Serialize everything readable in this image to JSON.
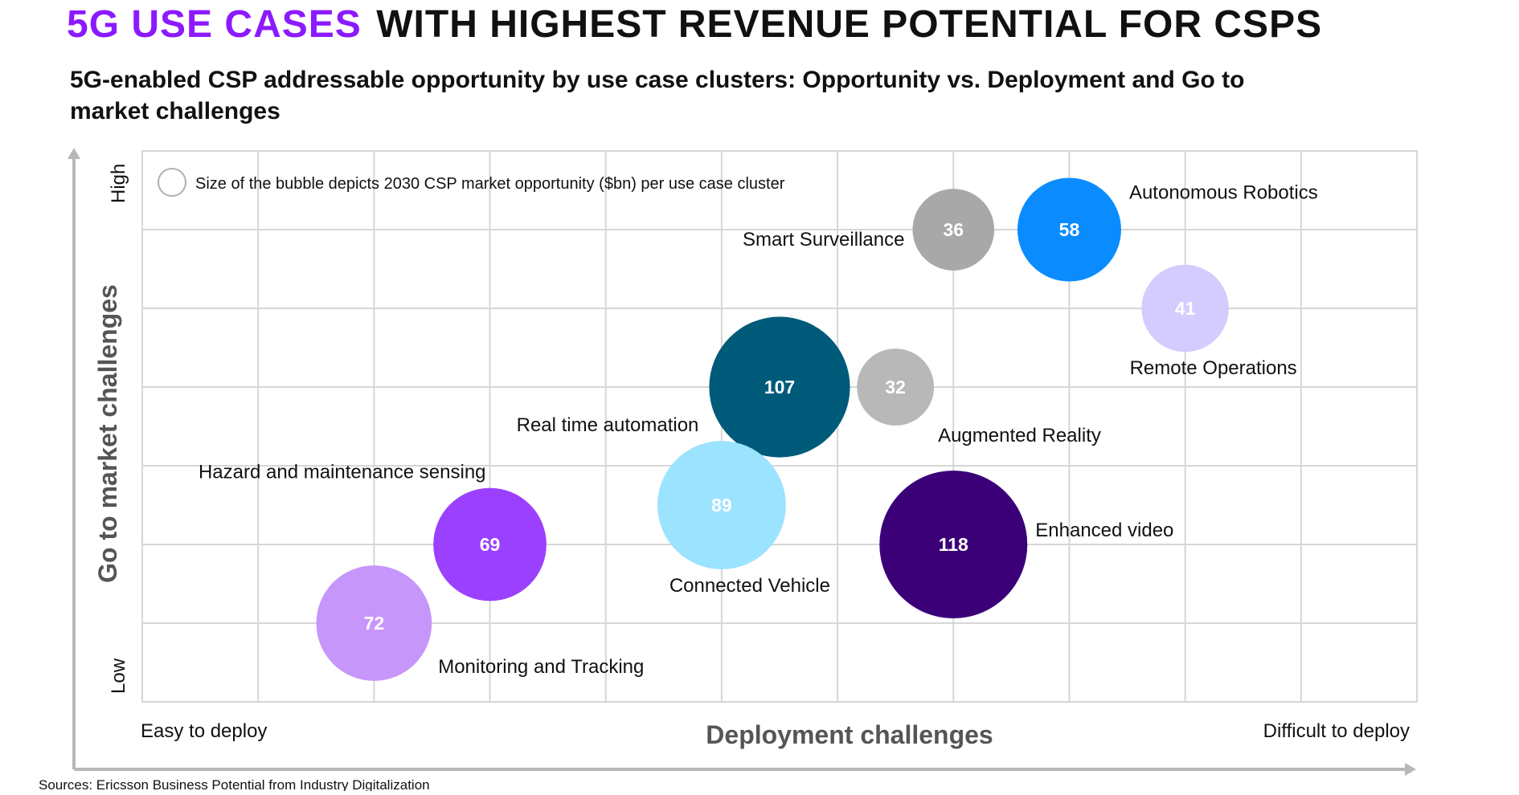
{
  "header": {
    "title_accent": "5G USE CASES",
    "title_rest": "WITH HIGHEST REVENUE POTENTIAL FOR CSPS",
    "subtitle_line1": "5G-enabled CSP addressable opportunity by use case clusters: Opportunity vs. Deployment and Go to",
    "subtitle_line2": "market challenges"
  },
  "colors": {
    "accent": "#8c1aff",
    "grid": "#d6d6d6",
    "axis_arrow": "#b8b8b8"
  },
  "chart_data": {
    "type": "scatter",
    "subtype": "bubble",
    "title": "",
    "xlabel": "Deployment challenges",
    "ylabel": "Go to market challenges",
    "x_low_label": "Easy to deploy",
    "x_high_label": "Difficult to deploy",
    "y_low_label": "Low",
    "y_high_label": "High",
    "xlim": [
      0,
      11
    ],
    "ylim": [
      0,
      7
    ],
    "grid": true,
    "note": "Size of the bubble depicts 2030 CSP market opportunity ($bn) per use case cluster",
    "series": [
      {
        "name": "Autonomous Robotics",
        "x": 8,
        "y": 6,
        "value": 58,
        "color": "#0a8cff",
        "label_position": "top-right"
      },
      {
        "name": "Smart Surveillance",
        "x": 7,
        "y": 6,
        "value": 36,
        "color": "#a8a8a8",
        "label_position": "left"
      },
      {
        "name": "Remote Operations",
        "x": 9,
        "y": 5,
        "value": 41,
        "color": "#d4ccff",
        "label_position": "bottom"
      },
      {
        "name": "Real time automation",
        "x": 5.5,
        "y": 4,
        "value": 107,
        "color": "#005a7a",
        "label_position": "bottom-left"
      },
      {
        "name": "Augmented Reality",
        "x": 6.5,
        "y": 4,
        "value": 32,
        "color": "#b8b8b8",
        "label_position": "bottom-right"
      },
      {
        "name": "Connected Vehicle",
        "x": 5,
        "y": 2.5,
        "value": 89,
        "color": "#9be3ff",
        "label_position": "bottom"
      },
      {
        "name": "Enhanced video",
        "x": 7,
        "y": 2,
        "value": 118,
        "color": "#3b0078",
        "label_position": "right"
      },
      {
        "name": "Hazard and maintenance sensing",
        "x": 3,
        "y": 2,
        "value": 69,
        "color": "#9b40ff",
        "label_position": "top-left"
      },
      {
        "name": "Monitoring and Tracking",
        "x": 2,
        "y": 1,
        "value": 72,
        "color": "#c796fb",
        "label_position": "bottom-right"
      }
    ]
  },
  "footer": {
    "source": "Sources: Ericsson Business Potential from Industry Digitalization"
  }
}
